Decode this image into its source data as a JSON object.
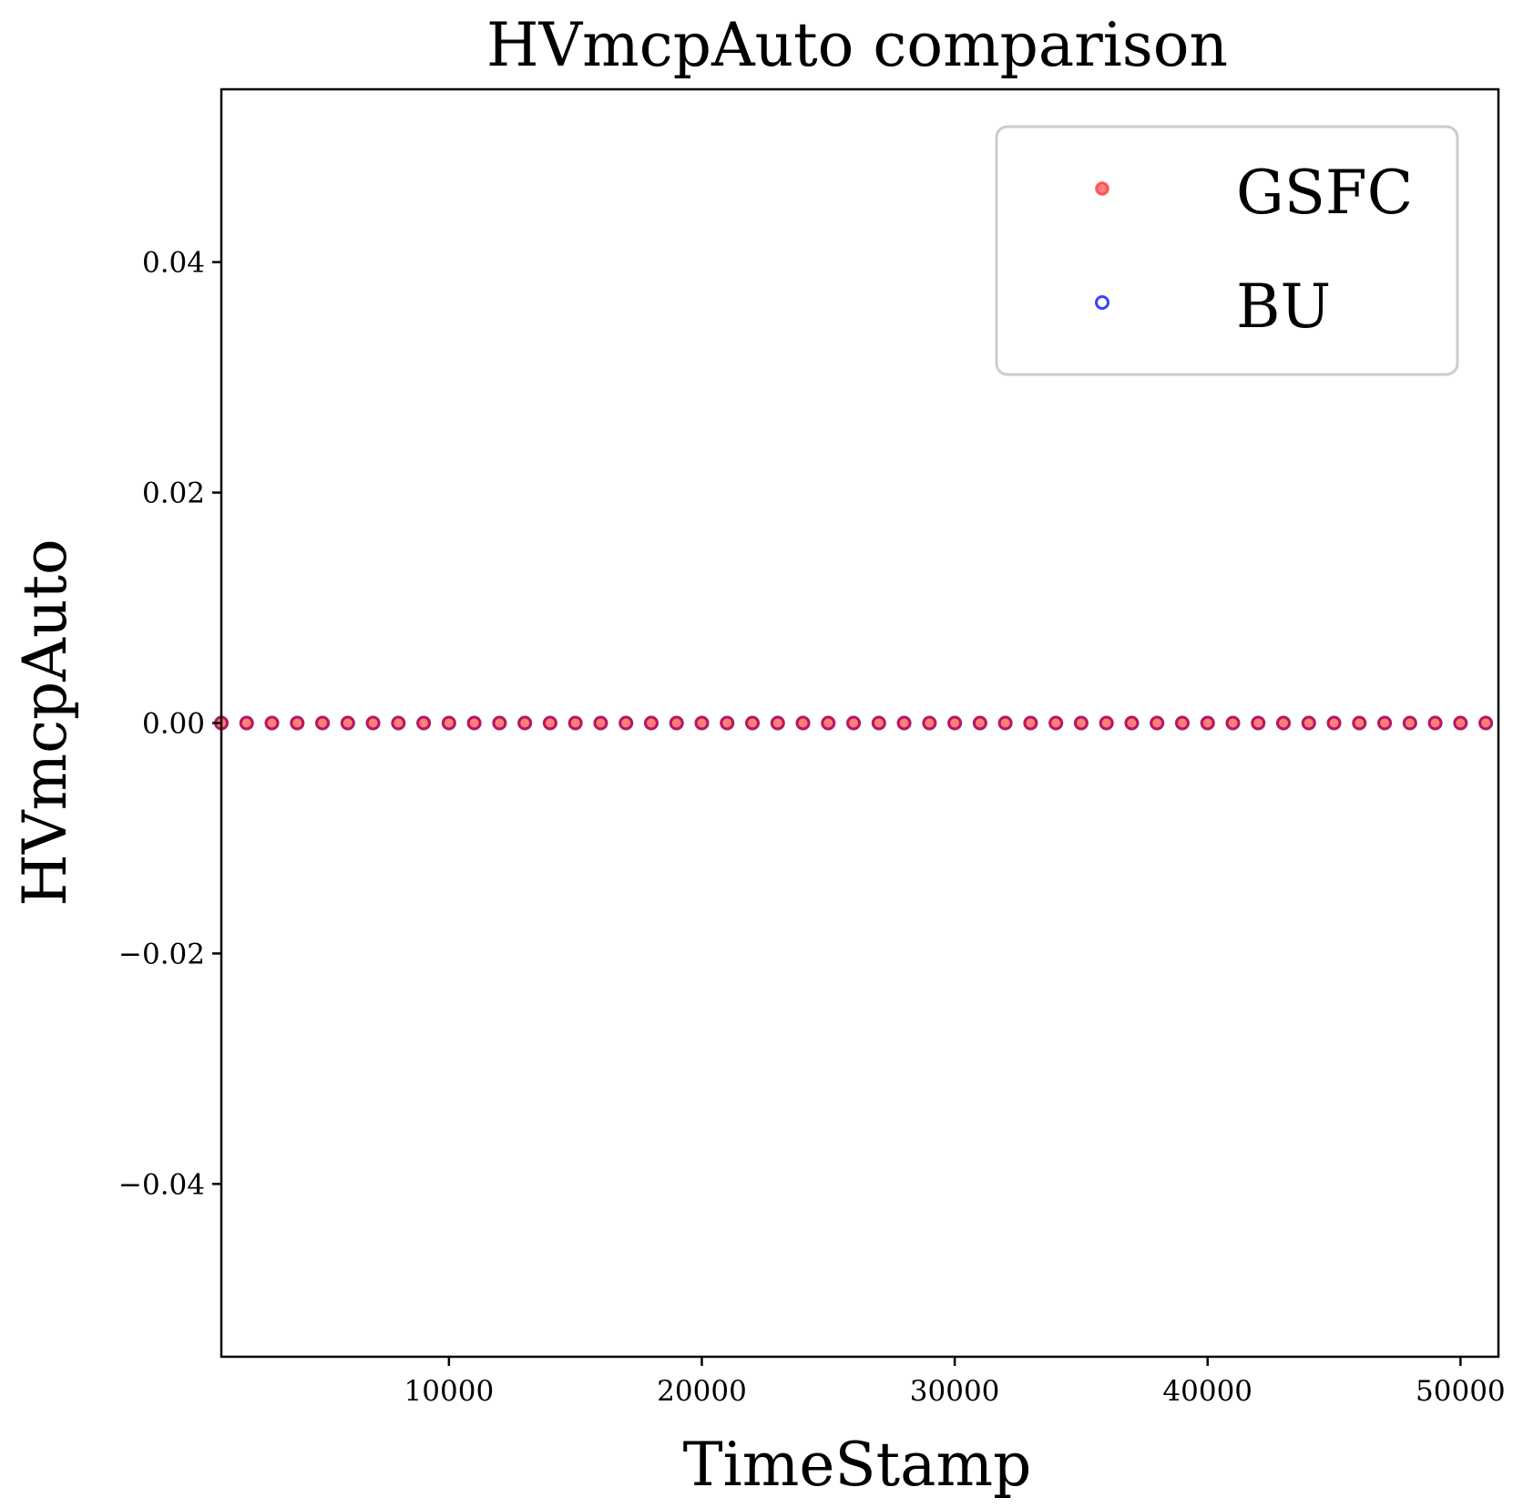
{
  "chart_data": {
    "type": "scatter",
    "title": "HVmcpAuto comparison",
    "xlabel": "TimeStamp",
    "ylabel": "HVmcpAuto",
    "xlim": [
      1000,
      51500
    ],
    "ylim": [
      -0.055,
      0.055
    ],
    "xticks": [
      10000,
      20000,
      30000,
      40000,
      50000
    ],
    "xtick_labels": [
      "10000",
      "20000",
      "30000",
      "40000",
      "50000"
    ],
    "yticks": [
      0.04,
      0.02,
      0.0,
      -0.02,
      -0.04
    ],
    "ytick_labels": [
      "0.04",
      "0.02",
      "0.00",
      "−0.02",
      "−0.04"
    ],
    "grid": false,
    "legend": {
      "position": "top-right",
      "entries": [
        "GSFC",
        "BU"
      ]
    },
    "series": [
      {
        "name": "GSFC",
        "color": "#ff0000",
        "marker": "filled-circle",
        "alpha": 0.5,
        "x": [
          1000,
          2000,
          3000,
          4000,
          5000,
          6000,
          7000,
          8000,
          9000,
          10000,
          11000,
          12000,
          13000,
          14000,
          15000,
          16000,
          17000,
          18000,
          19000,
          20000,
          21000,
          22000,
          23000,
          24000,
          25000,
          26000,
          27000,
          28000,
          29000,
          30000,
          31000,
          32000,
          33000,
          34000,
          35000,
          36000,
          37000,
          38000,
          39000,
          40000,
          41000,
          42000,
          43000,
          44000,
          45000,
          46000,
          47000,
          48000,
          49000,
          50000,
          51000
        ],
        "y": [
          0,
          0,
          0,
          0,
          0,
          0,
          0,
          0,
          0,
          0,
          0,
          0,
          0,
          0,
          0,
          0,
          0,
          0,
          0,
          0,
          0,
          0,
          0,
          0,
          0,
          0,
          0,
          0,
          0,
          0,
          0,
          0,
          0,
          0,
          0,
          0,
          0,
          0,
          0,
          0,
          0,
          0,
          0,
          0,
          0,
          0,
          0,
          0,
          0,
          0,
          0
        ]
      },
      {
        "name": "BU",
        "color": "#0000ff",
        "marker": "open-circle",
        "alpha": 0.75,
        "x": [
          1000,
          2000,
          3000,
          4000,
          5000,
          6000,
          7000,
          8000,
          9000,
          10000,
          11000,
          12000,
          13000,
          14000,
          15000,
          16000,
          17000,
          18000,
          19000,
          20000,
          21000,
          22000,
          23000,
          24000,
          25000,
          26000,
          27000,
          28000,
          29000,
          30000,
          31000,
          32000,
          33000,
          34000,
          35000,
          36000,
          37000,
          38000,
          39000,
          40000,
          41000,
          42000,
          43000,
          44000,
          45000,
          46000,
          47000,
          48000,
          49000,
          50000,
          51000
        ],
        "y": [
          0,
          0,
          0,
          0,
          0,
          0,
          0,
          0,
          0,
          0,
          0,
          0,
          0,
          0,
          0,
          0,
          0,
          0,
          0,
          0,
          0,
          0,
          0,
          0,
          0,
          0,
          0,
          0,
          0,
          0,
          0,
          0,
          0,
          0,
          0,
          0,
          0,
          0,
          0,
          0,
          0,
          0,
          0,
          0,
          0,
          0,
          0,
          0,
          0,
          0,
          0
        ]
      }
    ]
  }
}
